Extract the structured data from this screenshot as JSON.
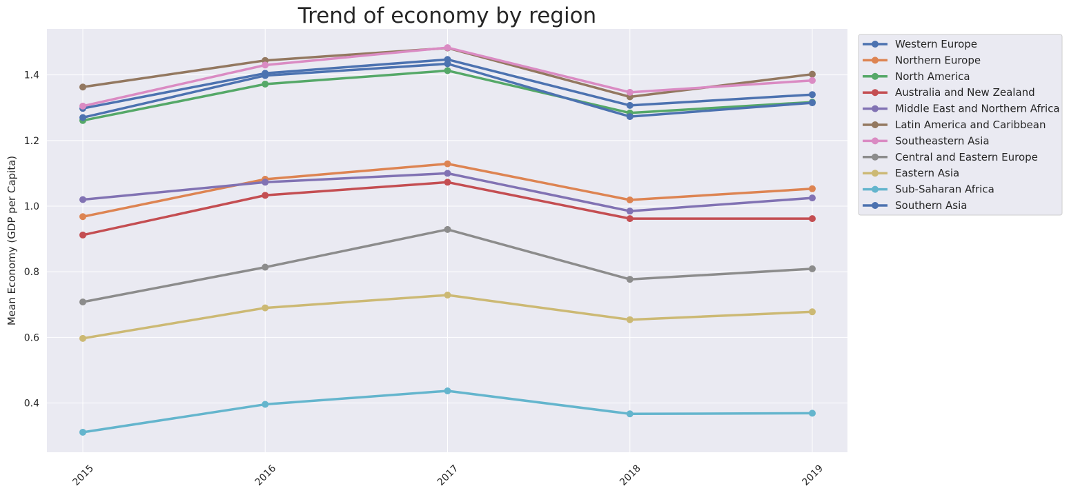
{
  "chart_data": {
    "type": "line",
    "title": "Trend of economy by region",
    "xlabel": "",
    "ylabel": "Mean Economy (GDP per Capita)",
    "x": [
      "2015",
      "2016",
      "2017",
      "2018",
      "2019"
    ],
    "ylim": [
      0.25,
      1.54
    ],
    "yticks": [
      "0.4",
      "0.6",
      "0.8",
      "1.0",
      "1.2",
      "1.4"
    ],
    "grid": true,
    "legend_position": "outside-top-right",
    "series": [
      {
        "name": "Western Europe",
        "color": "#4c72b0",
        "values": [
          1.298,
          1.405,
          1.447,
          1.307,
          1.34
        ]
      },
      {
        "name": "Northern Europe",
        "color": "#dd8452",
        "values": [
          0.968,
          1.082,
          1.129,
          1.019,
          1.053
        ]
      },
      {
        "name": "North America",
        "color": "#55a868",
        "values": [
          1.261,
          1.372,
          1.413,
          1.284,
          1.317
        ]
      },
      {
        "name": "Australia and New Zealand",
        "color": "#c44e52",
        "values": [
          0.912,
          1.033,
          1.073,
          0.962,
          0.962
        ]
      },
      {
        "name": "Middle East and Northern Africa",
        "color": "#8172b3",
        "values": [
          1.02,
          1.073,
          1.1,
          0.985,
          1.025
        ]
      },
      {
        "name": "Latin America and Caribbean",
        "color": "#937860",
        "values": [
          1.363,
          1.444,
          1.482,
          1.333,
          1.402
        ]
      },
      {
        "name": "Southeastern Asia",
        "color": "#da8bc3",
        "values": [
          1.305,
          1.43,
          1.483,
          1.347,
          1.383
        ]
      },
      {
        "name": "Central and Eastern Europe",
        "color": "#8c8c8c",
        "values": [
          0.708,
          0.814,
          0.929,
          0.777,
          0.809
        ]
      },
      {
        "name": "Eastern Asia",
        "color": "#ccb974",
        "values": [
          0.597,
          0.69,
          0.729,
          0.654,
          0.678
        ]
      },
      {
        "name": "Sub-Saharan Africa",
        "color": "#64b5cd",
        "values": [
          0.311,
          0.396,
          0.437,
          0.367,
          0.369
        ]
      },
      {
        "name": "Southern Asia",
        "color": "#4c72b0",
        "values": [
          1.27,
          1.398,
          1.434,
          1.273,
          1.315
        ]
      }
    ]
  }
}
